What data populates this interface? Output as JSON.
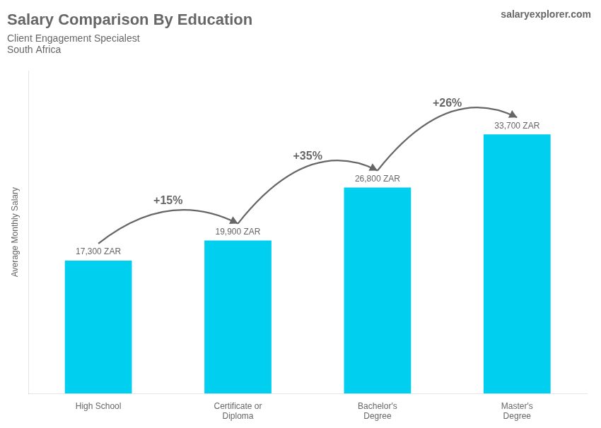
{
  "chart_data": {
    "type": "bar",
    "title": "Salary Comparison By Education",
    "subtitle": [
      "Client Engagement Specialest",
      "South Africa"
    ],
    "brand": "salaryexplorer.com",
    "categories": [
      "High School",
      "Certificate or\nDiploma",
      "Bachelor's\nDegree",
      "Master's\nDegree"
    ],
    "values": [
      17300,
      19900,
      26800,
      33700
    ],
    "value_labels": [
      "17,300 ZAR",
      "19,900 ZAR",
      "26,800 ZAR",
      "33,700 ZAR"
    ],
    "data_labels": true,
    "annotations": [
      "+15%",
      "+35%",
      "+26%"
    ],
    "color": "#00CFEF",
    "ylabel": "Average Monthly Salary",
    "ylim": [
      0,
      42000
    ],
    "yticks": [],
    "grid": false,
    "tick_labels": "x",
    "legend": false
  }
}
